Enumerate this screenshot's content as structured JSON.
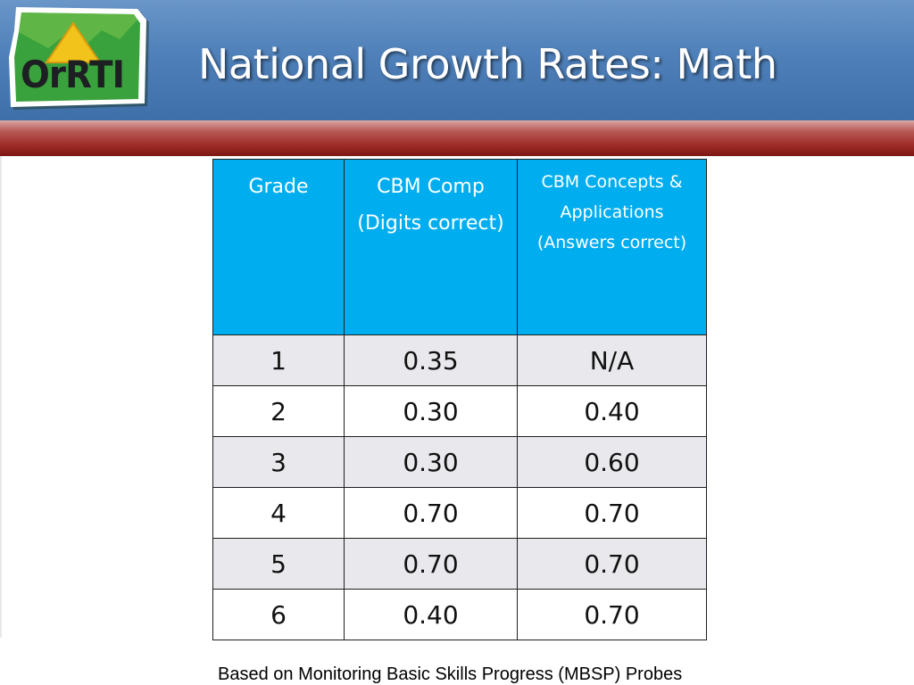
{
  "header": {
    "title": "National Growth Rates: Math",
    "logo_text": "OrRTI"
  },
  "colors": {
    "header_blue": "#4f80b9",
    "band_red": "#9e2b27",
    "table_header": "#00aeef",
    "row_shade": "#e9e8ec",
    "logo_green": "#39a23c",
    "logo_yellow": "#f2c31b"
  },
  "table": {
    "headers": {
      "grade": "Grade",
      "cbm_comp": "CBM Comp (Digits correct)",
      "cbm_concepts": "CBM Concepts & Applications (Answers correct)"
    },
    "rows": [
      {
        "grade": "1",
        "comp": "0.35",
        "concepts": "N/A"
      },
      {
        "grade": "2",
        "comp": "0.30",
        "concepts": "0.40"
      },
      {
        "grade": "3",
        "comp": "0.30",
        "concepts": "0.60"
      },
      {
        "grade": "4",
        "comp": "0.70",
        "concepts": "0.70"
      },
      {
        "grade": "5",
        "comp": "0.70",
        "concepts": "0.70"
      },
      {
        "grade": "6",
        "comp": "0.40",
        "concepts": "0.70"
      }
    ]
  },
  "footnote": "Based on Monitoring Basic Skills Progress (MBSP) Probes"
}
